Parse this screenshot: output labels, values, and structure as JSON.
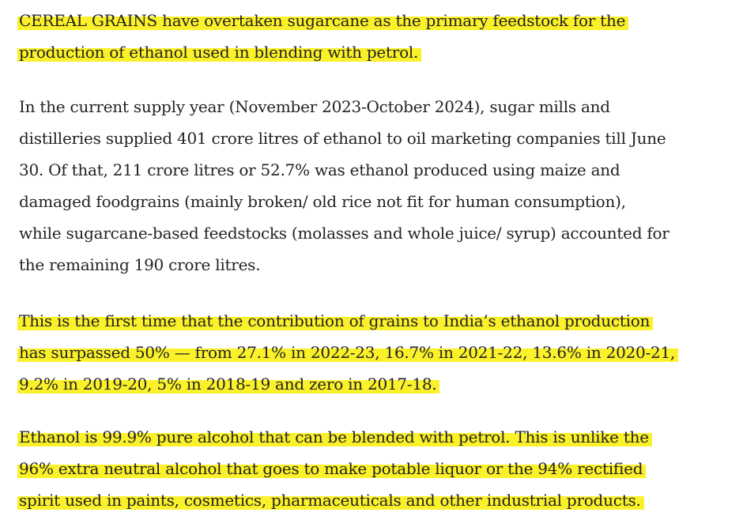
{
  "article": {
    "paragraphs": [
      {
        "highlighted": true,
        "lines": [
          "CEREAL GRAINS have overtaken sugarcane as the primary feedstock for the",
          "production of ethanol used in blending with petrol."
        ]
      },
      {
        "highlighted": false,
        "lines": [
          "In the current supply year (November 2023-October 2024), sugar mills and",
          "distilleries supplied 401 crore litres of ethanol to oil marketing companies till June",
          "30. Of that, 211 crore litres or 52.7% was ethanol produced using maize and",
          "damaged foodgrains (mainly broken/ old rice not fit for human consumption),",
          "while sugarcane-based feedstocks (molasses and whole juice/ syrup) accounted for",
          "the remaining 190 crore litres."
        ]
      },
      {
        "highlighted": true,
        "lines": [
          "This is the first time that the contribution of grains to India’s ethanol production",
          "has surpassed 50% — from 27.1% in 2022-23, 16.7% in 2021-22, 13.6% in 2020-21,",
          "9.2% in 2019-20, 5% in 2018-19 and zero in 2017-18."
        ]
      },
      {
        "highlighted": true,
        "lines": [
          "Ethanol is 99.9% pure alcohol that can be blended with petrol. This is unlike the",
          "96% extra neutral alcohol that goes to make potable liquor or the 94% rectified",
          "spirit used in paints, cosmetics, pharmaceuticals and other industrial products."
        ]
      }
    ],
    "highlight_color": "#fbf12a",
    "text_color": "#222222"
  }
}
